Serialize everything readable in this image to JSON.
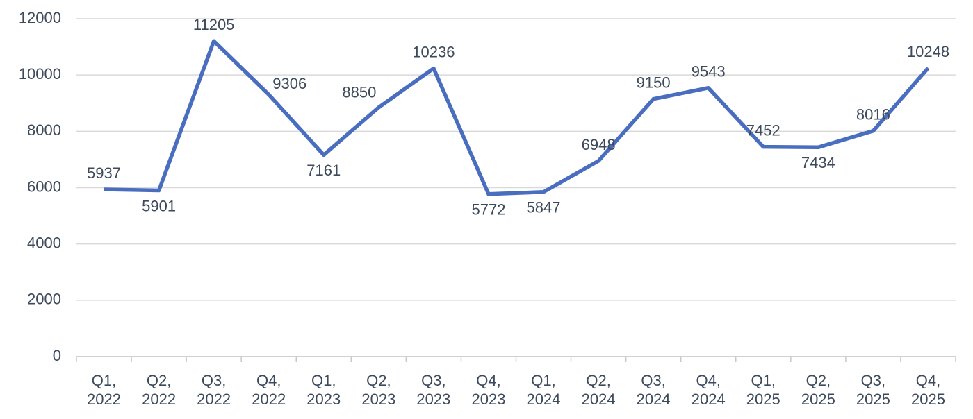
{
  "chart_data": {
    "type": "line",
    "categories": [
      "Q1, 2022",
      "Q2, 2022",
      "Q3, 2022",
      "Q4, 2022",
      "Q1, 2023",
      "Q2, 2023",
      "Q3, 2023",
      "Q4, 2023",
      "Q1, 2024",
      "Q2, 2024",
      "Q3, 2024",
      "Q4, 2024",
      "Q1, 2025",
      "Q2, 2025",
      "Q3, 2025",
      "Q4, 2025"
    ],
    "values": [
      5937,
      5901,
      11205,
      9306,
      7161,
      8850,
      10236,
      5772,
      5847,
      6948,
      9150,
      9543,
      7452,
      7434,
      8016,
      10248
    ],
    "color": "#4a6ebf",
    "ylim": [
      0,
      12000
    ],
    "yticks": [
      0,
      2000,
      4000,
      6000,
      8000,
      10000,
      12000
    ],
    "grid": true
  }
}
